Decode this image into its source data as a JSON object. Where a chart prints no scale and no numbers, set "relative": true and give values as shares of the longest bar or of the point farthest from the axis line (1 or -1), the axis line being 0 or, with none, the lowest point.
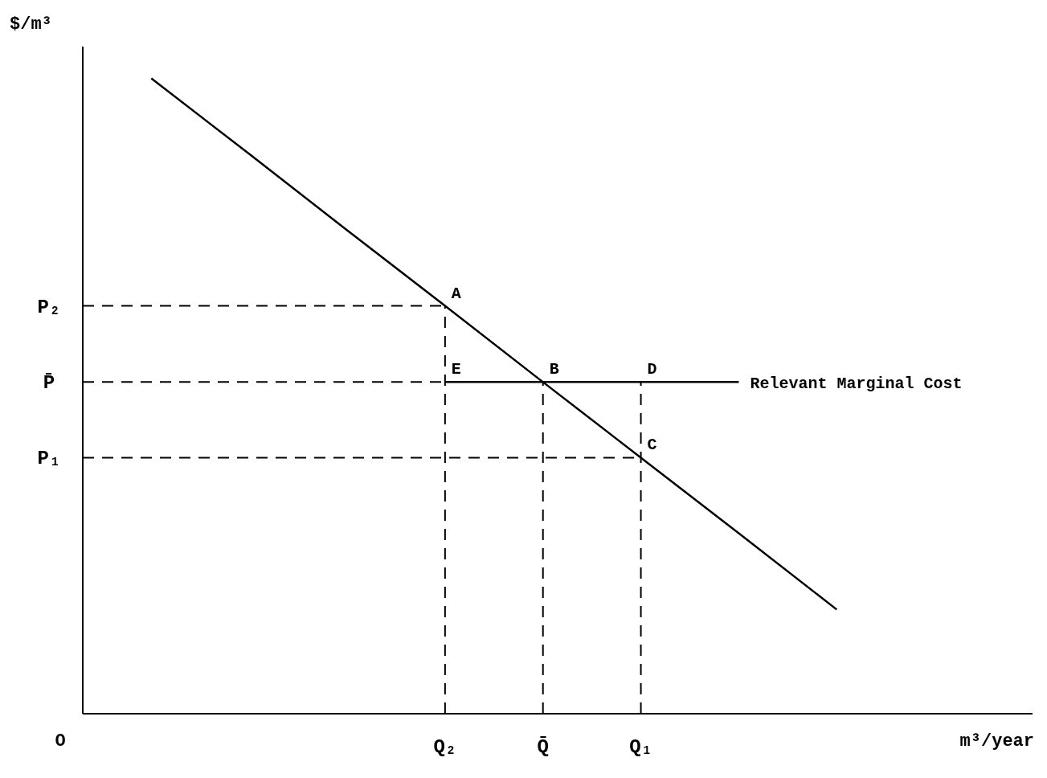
{
  "chart_data": {
    "type": "line",
    "relative": true,
    "ylabel": "$/m³",
    "xlabel": "m³/year",
    "categories": [
      null,
      null,
      null,
      "Q₂",
      "Q̄",
      "Q₁",
      null,
      null,
      null
    ],
    "line_style": "solid",
    "marker": "none",
    "series": [
      {
        "values": [
          1.0,
          0.881,
          0.761,
          0.642,
          0.522,
          0.403,
          0.284,
          0.164,
          null
        ],
        "color": "#000000"
      },
      {
        "name": "Relevant Marginal Cost",
        "values": [
          null,
          null,
          null,
          0.522,
          0.522,
          0.522,
          0.522,
          null,
          null
        ],
        "color": "#000000"
      }
    ],
    "ref_lines": [
      {
        "axis": "y",
        "value": 0.642,
        "label": "P₂",
        "line_style": "dashed",
        "color": "#000000"
      },
      {
        "axis": "y",
        "value": 0.522,
        "label": "P̄",
        "line_style": "dashed",
        "color": "#000000"
      },
      {
        "axis": "y",
        "value": 0.403,
        "label": "P₁",
        "line_style": "dashed",
        "color": "#000000"
      },
      {
        "axis": "x",
        "value": "Q₂",
        "line_style": "dashed",
        "color": "#000000"
      },
      {
        "axis": "x",
        "value": "Q̄",
        "line_style": "dashed",
        "color": "#000000"
      },
      {
        "axis": "x",
        "value": "Q₁",
        "line_style": "dashed",
        "color": "#000000"
      }
    ],
    "annotations": [
      "O",
      {
        "text": "A",
        "x": "Q₂",
        "y": 0.642
      },
      {
        "text": "E",
        "x": "Q₂",
        "y": 0.522
      },
      {
        "text": "B",
        "x": "Q̄",
        "y": 0.522
      },
      {
        "text": "D",
        "x": "Q₁",
        "y": 0.522
      },
      {
        "text": "C",
        "x": "Q₁",
        "y": 0.403
      }
    ]
  }
}
